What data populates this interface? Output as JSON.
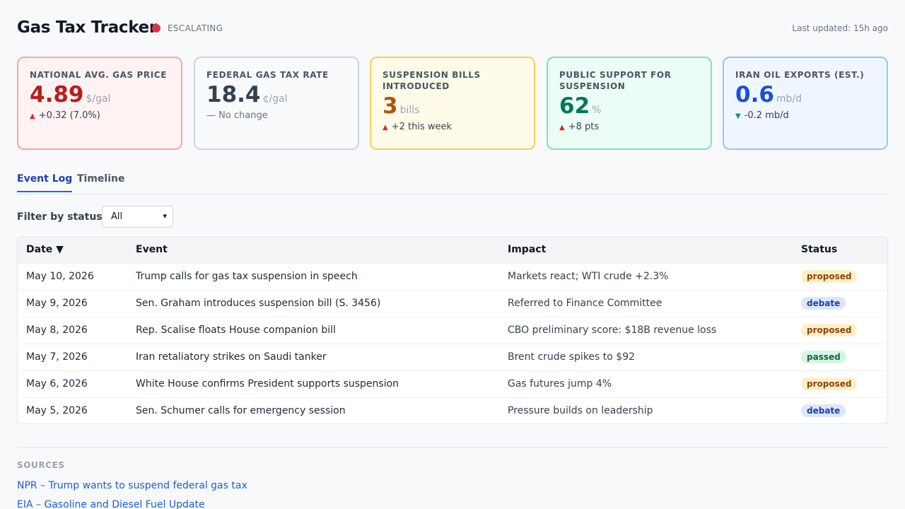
{
  "header": {
    "title": "Gas Tax Tracker",
    "status": "ESCALATING",
    "status_color": "#dc3545",
    "updated": "Last updated: 15h  ago"
  },
  "cards": [
    {
      "label": "NATIONAL AVG. GAS PRICE",
      "value": "4.89",
      "unit": "$/gal",
      "delta_icon": "▲",
      "delta": "+0.32 (7.0%)",
      "accent": "#b91c1c"
    },
    {
      "label": "FEDERAL GAS TAX RATE",
      "value": "18.4",
      "unit": "¢/gal",
      "delta_icon": "",
      "delta": "— No change",
      "accent": "#334155"
    },
    {
      "label": "SUSPENSION BILLS INTRODUCED",
      "value": "3",
      "unit": "bills",
      "delta_icon": "▲",
      "delta": "+2 this week",
      "accent": "#b45309"
    },
    {
      "label": "PUBLIC SUPPORT FOR SUSPENSION",
      "value": "62",
      "unit": "%",
      "delta_icon": "▲",
      "delta": "+8 pts",
      "accent": "#047857"
    },
    {
      "label": "IRAN OIL EXPORTS (EST.)",
      "value": "0.6",
      "unit": "mb/d",
      "delta_icon": "▼",
      "delta": "-0.2 mb/d",
      "accent": "#1d4ed8"
    }
  ],
  "tabs": [
    {
      "label": "Event Log",
      "active": true
    },
    {
      "label": "Timeline",
      "active": false
    }
  ],
  "filter": {
    "label": "Filter by status:",
    "selected": "All",
    "chevron_icon": "chevron-down-icon"
  },
  "table": {
    "headers": [
      "Date ▼",
      "Event",
      "Impact",
      "Status"
    ],
    "rows": [
      {
        "date": "May 10, 2026",
        "event": "Trump calls for gas tax suspension in speech",
        "impact": "Markets react; WTI crude +2.3%",
        "status": "proposed"
      },
      {
        "date": "May 9, 2026",
        "event": "Sen. Graham introduces suspension bill (S. 3456)",
        "impact": "Referred to Finance Committee",
        "status": "debate"
      },
      {
        "date": "May 8, 2026",
        "event": "Rep. Scalise floats House companion bill",
        "impact": "CBO preliminary score: $18B revenue loss",
        "status": "proposed"
      },
      {
        "date": "May 7, 2026",
        "event": "Iran retaliatory strikes on Saudi tanker",
        "impact": "Brent crude spikes to $92",
        "status": "passed"
      },
      {
        "date": "May 6, 2026",
        "event": "White House confirms President supports suspension",
        "impact": "Gas futures jump 4%",
        "status": "proposed"
      },
      {
        "date": "May 5, 2026",
        "event": "Sen. Schumer calls for emergency session",
        "impact": "Pressure builds on leadership",
        "status": "debate"
      }
    ]
  },
  "sources": {
    "label": "SOURCES",
    "links": [
      "NPR – Trump wants to suspend federal gas tax",
      "EIA – Gasoline and Diesel Fuel Update"
    ]
  }
}
